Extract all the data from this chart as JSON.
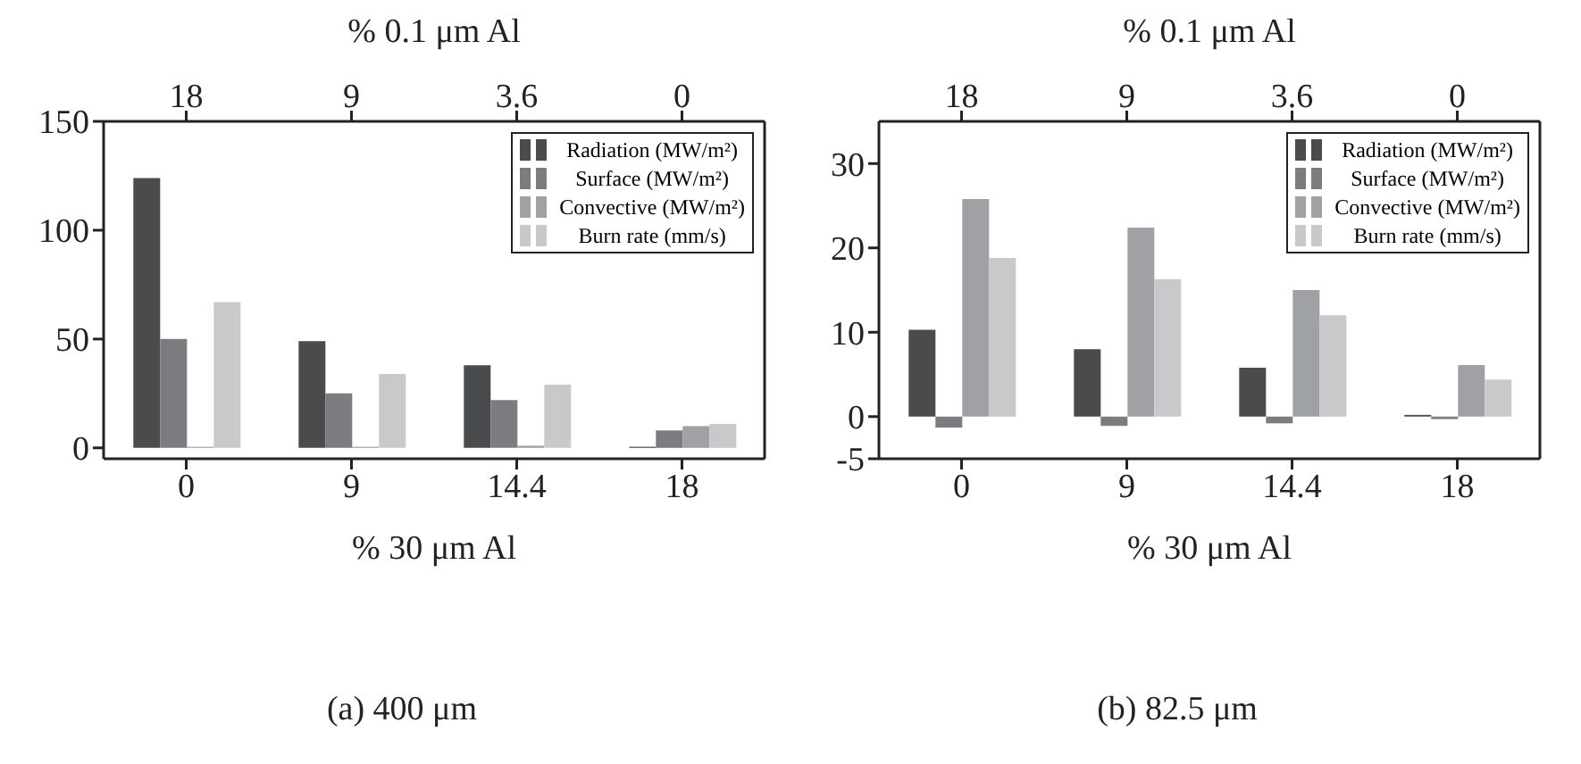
{
  "chart_data": [
    {
      "type": "bar",
      "title": "(a) 400 μm",
      "xlabel": "% 30 μm Al",
      "x2label": "% 0.1 μm Al",
      "categories": [
        "0",
        "9",
        "14.4",
        "18"
      ],
      "annotations": [
        "18",
        "9",
        "3.6",
        "0"
      ],
      "ylim": [
        -5,
        150
      ],
      "yticks": [
        0,
        50,
        100,
        150
      ],
      "grid": false,
      "legend": "top right",
      "series": [
        {
          "name": "Radiation (MW/m²)",
          "color": "#4a4b4d",
          "values": [
            124,
            49,
            38,
            0.5
          ]
        },
        {
          "name": "Surface (MW/m²)",
          "color": "#7b7c80",
          "values": [
            50,
            25,
            22,
            8
          ]
        },
        {
          "name": "Convective (MW/m²)",
          "color": "#a0a1a4",
          "values": [
            0.5,
            0.5,
            1,
            10
          ]
        },
        {
          "name": "Burn rate (mm/s)",
          "color": "#c8c9cb",
          "values": [
            67,
            34,
            29,
            11
          ]
        }
      ]
    },
    {
      "type": "bar",
      "title": "(b) 82.5 μm",
      "xlabel": "% 30 μm Al",
      "x2label": "% 0.1 μm Al",
      "categories": [
        "0",
        "9",
        "14.4",
        "18"
      ],
      "annotations": [
        "18",
        "9",
        "3.6",
        "0"
      ],
      "ylim": [
        -5,
        35
      ],
      "yticks": [
        -5,
        0,
        10,
        20,
        30
      ],
      "grid": false,
      "legend": "top right",
      "series": [
        {
          "name": "Radiation (MW/m²)",
          "color": "#4a4b4d",
          "values": [
            10.3,
            8.0,
            5.8,
            0.2
          ]
        },
        {
          "name": "Surface (MW/m²)",
          "color": "#7b7c80",
          "values": [
            -1.3,
            -1.1,
            -0.8,
            -0.3
          ]
        },
        {
          "name": "Convective (MW/m²)",
          "color": "#a0a1a4",
          "values": [
            25.8,
            22.4,
            15.0,
            6.1
          ]
        },
        {
          "name": "Burn rate (mm/s)",
          "color": "#c8c9cb",
          "values": [
            18.8,
            16.3,
            12.0,
            4.4
          ]
        }
      ]
    }
  ]
}
